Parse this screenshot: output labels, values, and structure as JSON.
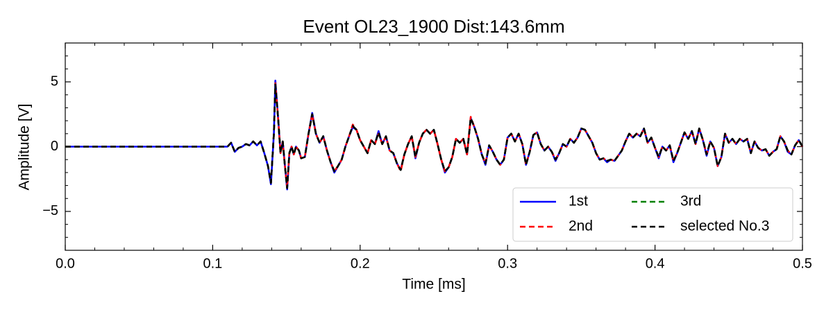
{
  "chart_data": {
    "type": "line",
    "title": "Event OL23_1900 Dist:143.6mm",
    "x_label": "Time [ms]",
    "y_label": "Amplitude [V]",
    "xlim": [
      0,
      0.5
    ],
    "ylim": [
      -8,
      8
    ],
    "xticks": [
      {
        "value": 0,
        "label": "0.0"
      },
      0.1,
      0.2,
      0.3,
      0.4,
      0.5
    ],
    "yticks": [
      {
        "value": -5,
        "label": "−5"
      },
      0,
      5
    ],
    "xminorticks": [
      0.02,
      0.04,
      0.06,
      0.08,
      0.12,
      0.14,
      0.16,
      0.18,
      0.22,
      0.24,
      0.26,
      0.28,
      0.32,
      0.34,
      0.36,
      0.38,
      0.42,
      0.44,
      0.46,
      0.48
    ],
    "yminorticks": [
      -7,
      -6,
      -4,
      -3,
      -2,
      -1,
      1,
      2,
      3,
      4,
      6,
      7
    ],
    "legend_loc": "lower right",
    "legend_columns": 2,
    "x": [
      0,
      0.11,
      0.1125,
      0.115,
      0.1175,
      0.12,
      0.1225,
      0.125,
      0.1275,
      0.13,
      0.1325,
      0.135,
      0.1375,
      0.1395,
      0.1415,
      0.1425,
      0.1445,
      0.146,
      0.1475,
      0.149,
      0.1505,
      0.152,
      0.1535,
      0.155,
      0.1565,
      0.1585,
      0.16,
      0.1625,
      0.165,
      0.1675,
      0.17,
      0.1725,
      0.175,
      0.1775,
      0.18,
      0.1825,
      0.185,
      0.1875,
      0.19,
      0.1925,
      0.195,
      0.1975,
      0.2,
      0.2025,
      0.205,
      0.2075,
      0.21,
      0.2125,
      0.215,
      0.2175,
      0.22,
      0.2225,
      0.225,
      0.2275,
      0.23,
      0.2325,
      0.235,
      0.2375,
      0.24,
      0.2425,
      0.245,
      0.2475,
      0.25,
      0.2525,
      0.255,
      0.2575,
      0.26,
      0.2625,
      0.265,
      0.2675,
      0.27,
      0.2725,
      0.275,
      0.2775,
      0.28,
      0.2825,
      0.285,
      0.2875,
      0.29,
      0.2925,
      0.295,
      0.2975,
      0.3,
      0.3025,
      0.305,
      0.3075,
      0.31,
      0.3125,
      0.315,
      0.3175,
      0.32,
      0.3225,
      0.325,
      0.3275,
      0.33,
      0.3325,
      0.335,
      0.3375,
      0.34,
      0.3425,
      0.345,
      0.3475,
      0.35,
      0.3525,
      0.355,
      0.3575,
      0.36,
      0.3625,
      0.365,
      0.3675,
      0.37,
      0.3725,
      0.375,
      0.3775,
      0.38,
      0.3825,
      0.385,
      0.3875,
      0.39,
      0.3925,
      0.395,
      0.3975,
      0.4,
      0.4025,
      0.405,
      0.4075,
      0.41,
      0.4125,
      0.415,
      0.4175,
      0.42,
      0.4225,
      0.425,
      0.4275,
      0.43,
      0.4325,
      0.435,
      0.4375,
      0.44,
      0.4425,
      0.445,
      0.4475,
      0.45,
      0.4525,
      0.455,
      0.4575,
      0.46,
      0.4625,
      0.465,
      0.4675,
      0.47,
      0.4725,
      0.475,
      0.4775,
      0.48,
      0.4825,
      0.485,
      0.4875,
      0.49,
      0.4925,
      0.495,
      0.4975,
      0.5
    ],
    "series": [
      {
        "name": "1st",
        "color": "#0000ff",
        "linestyle": "solid",
        "values": [
          0,
          0,
          0.3,
          -0.4,
          -0.1,
          0,
          0.2,
          0.1,
          0.4,
          0.1,
          0.4,
          -0.5,
          -1.5,
          -2.9,
          1,
          5.1,
          2,
          -0.5,
          0.4,
          -1.5,
          -3.3,
          -0.5,
          0,
          -0.6,
          0,
          -0.3,
          -0.9,
          -0.8,
          1.0,
          2.6,
          1,
          0.3,
          0.8,
          -0.3,
          -1.2,
          -2.0,
          -1.5,
          -1,
          0,
          0.8,
          1.5,
          1.3,
          0.5,
          0,
          -0.5,
          0.5,
          0.2,
          1.2,
          0.2,
          0.8,
          -0.3,
          -0.5,
          -1.3,
          -1.8,
          -0.6,
          0.2,
          0.8,
          -0.9,
          0.3,
          1.0,
          1.3,
          1.0,
          1.3,
          0.2,
          -1.0,
          -2.0,
          -1.6,
          -0.8,
          0.6,
          0.3,
          0.6,
          -0.6,
          2.2,
          1.5,
          0.6,
          -0.6,
          -1.4,
          0.1,
          -0.4,
          -1,
          -1.4,
          -1.0,
          0.7,
          1.0,
          0.4,
          1.0,
          0.2,
          -1.4,
          -0.4,
          0.9,
          1.1,
          0.2,
          -0.3,
          0,
          -0.4,
          -1.1,
          -0.5,
          0.2,
          0,
          0.6,
          0.3,
          0.7,
          1.4,
          1.3,
          0.8,
          0.3,
          -0.5,
          -1,
          -0.9,
          -1.2,
          -1,
          -1.1,
          -0.7,
          -0.3,
          0.4,
          1,
          0.7,
          1,
          0.8,
          1.4,
          0.3,
          0.7,
          -0.1,
          -0.9,
          0,
          -0.3,
          0.1,
          -1.2,
          -0.5,
          0.3,
          1.1,
          0.6,
          1.2,
          0.2,
          1.4,
          0.5,
          -0.7,
          0.4,
          -0.1,
          -1.5,
          -0.8,
          1,
          0.3,
          0.6,
          0.2,
          0.6,
          0.4,
          0.6,
          -0.5,
          0.4,
          -0.1,
          -0.3,
          -0.2,
          -0.7,
          -0.4,
          -0.2,
          0.8,
          0.4,
          -0.4,
          -0.6,
          0.1,
          0.5,
          0
        ]
      },
      {
        "name": "2nd",
        "color": "#ff0000",
        "linestyle": "dashed",
        "values": [
          0,
          0,
          0.3,
          -0.4,
          -0.1,
          0,
          0.2,
          0.1,
          0.4,
          0.1,
          0.4,
          -0.5,
          -1.5,
          -2.8,
          1,
          4.9,
          2,
          -0.5,
          0.4,
          -1.5,
          -3.2,
          -0.5,
          0,
          -0.6,
          0,
          -0.3,
          -0.9,
          -0.8,
          1.0,
          2.5,
          1,
          0.3,
          0.8,
          -0.3,
          -1.2,
          -1.9,
          -1.5,
          -1,
          0,
          0.8,
          1.7,
          1.3,
          0.5,
          0,
          -0.5,
          0.5,
          0.2,
          1.0,
          0.2,
          0.8,
          -0.3,
          -0.5,
          -1.3,
          -1.9,
          -0.6,
          0.2,
          0.8,
          -0.8,
          0.3,
          1.0,
          1.3,
          1.0,
          1.3,
          0.2,
          -1.0,
          -1.9,
          -1.6,
          -0.8,
          0.6,
          0.3,
          0.6,
          -0.6,
          2.3,
          1.5,
          0.6,
          -0.6,
          -1.3,
          0.1,
          -0.4,
          -1,
          -1.4,
          -1.0,
          0.7,
          1.0,
          0.4,
          1.0,
          0.2,
          -1.4,
          -0.4,
          0.9,
          1.1,
          0.2,
          -0.3,
          0,
          -0.4,
          -1,
          -0.5,
          0.2,
          0,
          0.6,
          0.3,
          0.7,
          1.4,
          1.3,
          0.8,
          0.3,
          -0.5,
          -1,
          -0.9,
          -1.1,
          -1,
          -1.1,
          -0.7,
          -0.3,
          0.4,
          1,
          0.7,
          1,
          0.8,
          1.4,
          0.3,
          0.7,
          -0.1,
          -0.8,
          0,
          -0.3,
          0.1,
          -1.1,
          -0.5,
          0.3,
          1.1,
          0.6,
          1.2,
          0.2,
          1.4,
          0.5,
          -0.6,
          0.4,
          -0.1,
          -1.5,
          -0.8,
          1,
          0.3,
          0.6,
          0.2,
          0.6,
          0.4,
          0.6,
          -0.5,
          0.4,
          -0.1,
          -0.3,
          -0.2,
          -0.7,
          -0.4,
          -0.2,
          0.8,
          0.4,
          -0.3,
          -0.6,
          0.1,
          0.5,
          0
        ]
      },
      {
        "name": "3rd",
        "color": "#008000",
        "linestyle": "dashed",
        "values": [
          0,
          0,
          0.3,
          -0.4,
          -0.1,
          0,
          0.2,
          0.1,
          0.4,
          0.1,
          0.4,
          -0.5,
          -1.5,
          -2.8,
          1,
          4.8,
          2,
          -0.5,
          0.4,
          -1.5,
          -3.2,
          -0.5,
          0,
          -0.6,
          0,
          -0.3,
          -0.9,
          -0.8,
          1.0,
          2.5,
          1,
          0.3,
          0.8,
          -0.3,
          -1.2,
          -1.9,
          -1.5,
          -1,
          0,
          0.8,
          1.6,
          1.3,
          0.5,
          0,
          -0.5,
          0.5,
          0.2,
          1.1,
          0.2,
          0.8,
          -0.3,
          -0.5,
          -1.3,
          -1.8,
          -0.6,
          0.2,
          0.8,
          -0.8,
          0.3,
          1.0,
          1.3,
          1.0,
          1.3,
          0.2,
          -1.0,
          -1.9,
          -1.6,
          -0.8,
          0.6,
          0.3,
          0.6,
          -0.6,
          2.2,
          1.5,
          0.6,
          -0.6,
          -1.3,
          0.1,
          -0.4,
          -1,
          -1.4,
          -1.0,
          0.7,
          1.0,
          0.4,
          1.0,
          0.2,
          -1.4,
          -0.4,
          0.9,
          1.1,
          0.2,
          -0.3,
          0,
          -0.4,
          -1,
          -0.5,
          0.2,
          0,
          0.6,
          0.3,
          0.7,
          1.4,
          1.3,
          0.8,
          0.3,
          -0.5,
          -1,
          -0.9,
          -1.1,
          -1,
          -1.1,
          -0.7,
          -0.3,
          0.4,
          1,
          0.7,
          1,
          0.8,
          1.4,
          0.3,
          0.7,
          -0.1,
          -0.8,
          0,
          -0.3,
          0.1,
          -1.1,
          -0.5,
          0.3,
          1.1,
          0.6,
          1.2,
          0.2,
          1.4,
          0.5,
          -0.6,
          0.4,
          -0.1,
          -1.5,
          -0.8,
          1,
          0.3,
          0.6,
          0.2,
          0.6,
          0.4,
          0.6,
          -0.5,
          0.4,
          -0.1,
          -0.3,
          -0.2,
          -0.7,
          -0.4,
          -0.2,
          0.8,
          0.4,
          -0.3,
          -0.6,
          0.1,
          0.5,
          0
        ]
      },
      {
        "name": "selected No.3",
        "color": "#000000",
        "linestyle": "dashed",
        "values": [
          0,
          0,
          0.3,
          -0.4,
          -0.1,
          0,
          0.2,
          0.1,
          0.4,
          0.1,
          0.4,
          -0.5,
          -1.5,
          -2.8,
          1,
          4.8,
          2,
          -0.5,
          0.4,
          -1.5,
          -3.2,
          -0.5,
          0,
          -0.6,
          0,
          -0.3,
          -0.9,
          -0.8,
          1.0,
          2.5,
          1,
          0.3,
          0.8,
          -0.3,
          -1.2,
          -1.9,
          -1.5,
          -1,
          0,
          0.8,
          1.6,
          1.3,
          0.5,
          0,
          -0.5,
          0.5,
          0.2,
          1.1,
          0.2,
          0.8,
          -0.3,
          -0.5,
          -1.3,
          -1.8,
          -0.6,
          0.2,
          0.8,
          -0.8,
          0.3,
          1.0,
          1.3,
          1.0,
          1.3,
          0.2,
          -1.0,
          -1.9,
          -1.6,
          -0.8,
          0.6,
          0.3,
          0.6,
          -0.6,
          2.2,
          1.5,
          0.6,
          -0.6,
          -1.3,
          0.1,
          -0.4,
          -1,
          -1.4,
          -1.0,
          0.7,
          1.0,
          0.4,
          1.0,
          0.2,
          -1.4,
          -0.4,
          0.9,
          1.1,
          0.2,
          -0.3,
          0,
          -0.4,
          -1,
          -0.5,
          0.2,
          0,
          0.6,
          0.3,
          0.7,
          1.4,
          1.3,
          0.8,
          0.3,
          -0.5,
          -1,
          -0.9,
          -1.1,
          -1,
          -1.1,
          -0.7,
          -0.3,
          0.4,
          1,
          0.7,
          1,
          0.8,
          1.4,
          0.3,
          0.7,
          -0.1,
          -0.8,
          0,
          -0.3,
          0.1,
          -1.1,
          -0.5,
          0.3,
          1.1,
          0.6,
          1.2,
          0.2,
          1.4,
          0.5,
          -0.6,
          0.4,
          -0.1,
          -1.5,
          -0.8,
          1,
          0.3,
          0.6,
          0.2,
          0.6,
          0.4,
          0.6,
          -0.5,
          0.4,
          -0.1,
          -0.3,
          -0.2,
          -0.7,
          -0.4,
          -0.2,
          0.8,
          0.4,
          -0.3,
          -0.6,
          0.1,
          0.5,
          0
        ]
      }
    ]
  }
}
